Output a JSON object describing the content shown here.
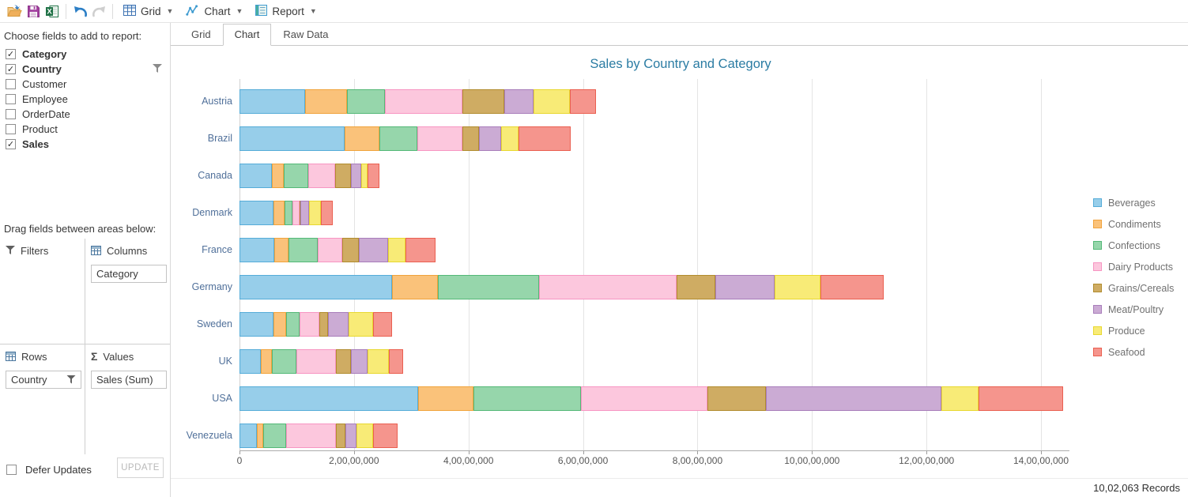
{
  "toolbar": {
    "icons": [
      "open-icon",
      "save-icon",
      "excel-export-icon",
      "undo-icon",
      "redo-icon"
    ],
    "menus": [
      {
        "label": "Grid",
        "icon": "grid-menu-icon"
      },
      {
        "label": "Chart",
        "icon": "chart-menu-icon"
      },
      {
        "label": "Report",
        "icon": "report-menu-icon"
      }
    ]
  },
  "field_panel": {
    "title": "Choose fields to add to report:",
    "fields": [
      {
        "label": "Category",
        "checked": true
      },
      {
        "label": "Country",
        "checked": true,
        "filtered": true
      },
      {
        "label": "Customer",
        "checked": false
      },
      {
        "label": "Employee",
        "checked": false
      },
      {
        "label": "OrderDate",
        "checked": false
      },
      {
        "label": "Product",
        "checked": false
      },
      {
        "label": "Sales",
        "checked": true
      }
    ],
    "drag_title": "Drag fields between areas below:",
    "areas": {
      "filters": {
        "label": "Filters",
        "items": []
      },
      "columns": {
        "label": "Columns",
        "items": [
          "Category"
        ]
      },
      "rows": {
        "label": "Rows",
        "items": [
          "Country"
        ],
        "item_filtered": true
      },
      "values": {
        "label": "Values",
        "items": [
          "Sales (Sum)"
        ]
      }
    },
    "defer_updates_label": "Defer Updates",
    "update_button_label": "UPDATE"
  },
  "tabs": [
    {
      "label": "Grid",
      "active": false
    },
    {
      "label": "Chart",
      "active": true
    },
    {
      "label": "Raw Data",
      "active": false
    }
  ],
  "chart_data": {
    "type": "bar",
    "orientation": "horizontal-stacked",
    "title": "Sales by Country and Category",
    "categories": [
      "Austria",
      "Brazil",
      "Canada",
      "Denmark",
      "France",
      "Germany",
      "Sweden",
      "UK",
      "USA",
      "Venezuela"
    ],
    "series": [
      {
        "name": "Beverages",
        "color": "#97CEEA",
        "border": "#55ACD8",
        "values": [
          11500000,
          18300000,
          5600000,
          5900000,
          6100000,
          26600000,
          6000000,
          3700000,
          31200000,
          3100000
        ]
      },
      {
        "name": "Condiments",
        "color": "#FAC27A",
        "border": "#F0A33C",
        "values": [
          7300000,
          6200000,
          2200000,
          2000000,
          2400000,
          8100000,
          2100000,
          1900000,
          9700000,
          1000000
        ]
      },
      {
        "name": "Confections",
        "color": "#96D6AB",
        "border": "#54B877",
        "values": [
          6600000,
          6500000,
          4200000,
          1300000,
          5200000,
          17600000,
          2400000,
          4300000,
          18800000,
          4100000
        ]
      },
      {
        "name": "Dairy Products",
        "color": "#FCC7DD",
        "border": "#F795C2",
        "values": [
          13600000,
          7900000,
          4700000,
          1300000,
          4300000,
          24100000,
          3400000,
          6900000,
          22100000,
          8600000
        ]
      },
      {
        "name": "Grains/Cereals",
        "color": "#CFAC63",
        "border": "#B18C2E",
        "values": [
          7200000,
          3000000,
          2800000,
          200000,
          2800000,
          6700000,
          1500000,
          2600000,
          10200000,
          1700000
        ]
      },
      {
        "name": "Meat/Poultry",
        "color": "#CBABD4",
        "border": "#A87DBA",
        "values": [
          5100000,
          3800000,
          1800000,
          1500000,
          5200000,
          10400000,
          3700000,
          3000000,
          30600000,
          2000000
        ]
      },
      {
        "name": "Produce",
        "color": "#F8EB77",
        "border": "#E8D82F",
        "values": [
          6400000,
          3100000,
          1000000,
          2000000,
          3000000,
          8000000,
          4300000,
          3700000,
          6500000,
          2800000
        ]
      },
      {
        "name": "Seafood",
        "color": "#F5958D",
        "border": "#EA5F50",
        "values": [
          4600000,
          9100000,
          2200000,
          2100000,
          5200000,
          11000000,
          3300000,
          2500000,
          14800000,
          4300000
        ]
      }
    ],
    "x_axis": {
      "max_value": 145000000,
      "ticks": [
        {
          "value": 0,
          "label": "0"
        },
        {
          "value": 20000000,
          "label": "2,00,00,000"
        },
        {
          "value": 40000000,
          "label": "4,00,00,000"
        },
        {
          "value": 60000000,
          "label": "6,00,00,000"
        },
        {
          "value": 80000000,
          "label": "8,00,00,000"
        },
        {
          "value": 100000000,
          "label": "10,00,00,000"
        },
        {
          "value": 120000000,
          "label": "12,00,00,000"
        },
        {
          "value": 140000000,
          "label": "14,00,00,000"
        }
      ]
    },
    "legend_position": "right",
    "grid": true
  },
  "footer": {
    "records_label": "10,02,063 Records"
  }
}
